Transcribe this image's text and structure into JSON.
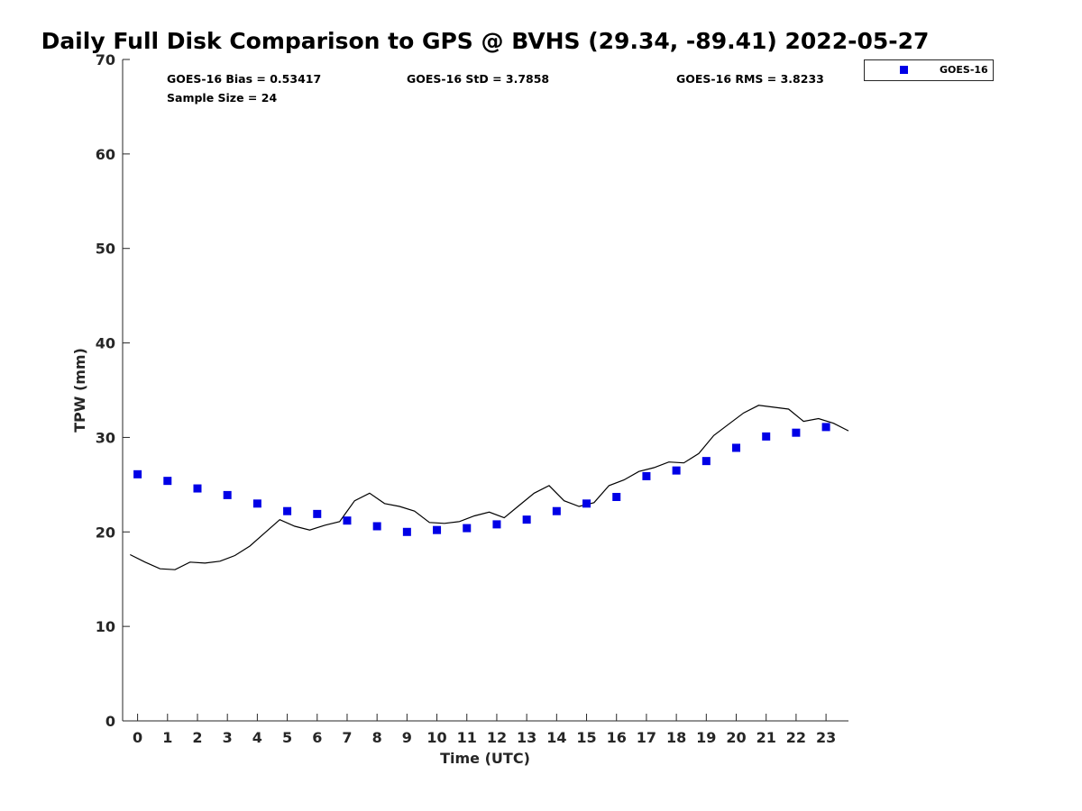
{
  "chart_data": {
    "type": "scatter",
    "title": "Daily Full Disk Comparison to GPS @ BVHS (29.34, -89.41) 2022-05-27",
    "xlabel": "Time (UTC)",
    "ylabel": "TPW (mm)",
    "xlim": [
      -0.5,
      23.75
    ],
    "ylim": [
      0,
      70
    ],
    "xticks": [
      0,
      1,
      2,
      3,
      4,
      5,
      6,
      7,
      8,
      9,
      10,
      11,
      12,
      13,
      14,
      15,
      16,
      17,
      18,
      19,
      20,
      21,
      22,
      23
    ],
    "yticks": [
      0,
      10,
      20,
      30,
      40,
      50,
      60,
      70
    ],
    "grid": false,
    "legend_position": "top-right",
    "stats": {
      "bias": "GOES-16 Bias = 0.53417",
      "std": "GOES-16 StD = 3.7858",
      "rms": "GOES-16 RMS = 3.8233",
      "sample": "Sample Size = 24"
    },
    "series": [
      {
        "name": "GOES-16",
        "kind": "markers",
        "color": "#0000e6",
        "x": [
          0,
          1,
          2,
          3,
          4,
          5,
          6,
          7,
          8,
          9,
          10,
          11,
          12,
          13,
          14,
          15,
          16,
          17,
          18,
          19,
          20,
          21,
          22,
          23
        ],
        "y": [
          26.1,
          25.4,
          24.6,
          23.9,
          23.0,
          22.2,
          21.9,
          21.2,
          20.6,
          20.0,
          20.2,
          20.4,
          20.8,
          21.3,
          22.2,
          23.0,
          23.7,
          25.9,
          26.5,
          27.5,
          28.9,
          30.1,
          30.5,
          31.1
        ]
      },
      {
        "kind": "line",
        "color": "#000000",
        "x": [
          -0.25,
          0.25,
          0.75,
          1.25,
          1.75,
          2.25,
          2.75,
          3.25,
          3.75,
          4.25,
          4.75,
          5.25,
          5.75,
          6.25,
          6.75,
          7.25,
          7.75,
          8.25,
          8.75,
          9.25,
          9.75,
          10.25,
          10.75,
          11.25,
          11.75,
          12.25,
          12.75,
          13.25,
          13.75,
          14.25,
          14.75,
          15.25,
          15.75,
          16.25,
          16.75,
          17.25,
          17.75,
          18.25,
          18.75,
          19.25,
          19.75,
          20.25,
          20.75,
          21.25,
          21.75,
          22.25,
          22.75,
          23.25,
          23.75
        ],
        "y": [
          17.6,
          16.8,
          16.1,
          16.0,
          16.8,
          16.7,
          16.9,
          17.5,
          18.5,
          19.9,
          21.3,
          20.6,
          20.2,
          20.7,
          21.1,
          23.3,
          24.1,
          23.0,
          22.7,
          22.2,
          21.0,
          20.9,
          21.1,
          21.7,
          22.1,
          21.5,
          22.8,
          24.1,
          24.9,
          23.3,
          22.7,
          23.1,
          24.9,
          25.5,
          26.4,
          26.8,
          27.4,
          27.3,
          28.3,
          30.2,
          31.4,
          32.6,
          33.4,
          33.2,
          33.0,
          31.7,
          32.0,
          31.5,
          30.7
        ]
      }
    ]
  }
}
